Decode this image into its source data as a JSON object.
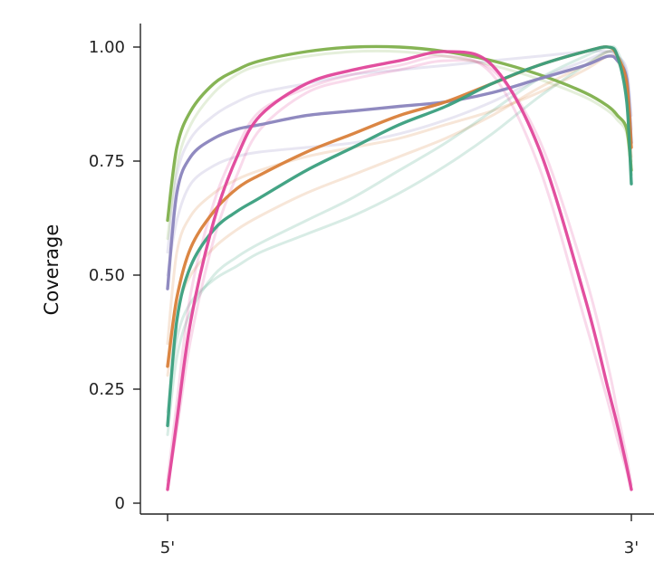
{
  "chart_data": {
    "type": "line",
    "title": "",
    "xlabel": "",
    "ylabel": "Coverage",
    "ylim": [
      0,
      1
    ],
    "xlim": [
      0,
      1
    ],
    "grid": false,
    "y_ticks": [
      {
        "value": 0,
        "label": "0"
      },
      {
        "value": 0.25,
        "label": "0.25"
      },
      {
        "value": 0.5,
        "label": "0.50"
      },
      {
        "value": 0.75,
        "label": "0.75"
      },
      {
        "value": 1.0,
        "label": "1.00"
      }
    ],
    "x_ticks": [
      {
        "value": 0,
        "label": "5'"
      },
      {
        "value": 1,
        "label": "3'"
      }
    ],
    "x": [
      0,
      0.02,
      0.05,
      0.1,
      0.15,
      0.2,
      0.3,
      0.4,
      0.5,
      0.6,
      0.7,
      0.8,
      0.9,
      0.95,
      0.97,
      0.99,
      1.0
    ],
    "series": [
      {
        "color": "#7fb04c",
        "highlight": true,
        "values": [
          0.62,
          0.78,
          0.86,
          0.92,
          0.95,
          0.97,
          0.99,
          1.0,
          1.0,
          0.99,
          0.97,
          0.94,
          0.9,
          0.87,
          0.85,
          0.82,
          0.73
        ]
      },
      {
        "color": "#8a84bd",
        "highlight": true,
        "values": [
          0.47,
          0.68,
          0.76,
          0.8,
          0.82,
          0.83,
          0.85,
          0.86,
          0.87,
          0.88,
          0.9,
          0.93,
          0.96,
          0.98,
          0.97,
          0.93,
          0.79
        ]
      },
      {
        "color": "#d9803a",
        "highlight": true,
        "values": [
          0.3,
          0.45,
          0.56,
          0.64,
          0.69,
          0.72,
          0.77,
          0.81,
          0.85,
          0.88,
          0.92,
          0.96,
          0.99,
          1.0,
          0.98,
          0.92,
          0.78
        ]
      },
      {
        "color": "#3a9f7e",
        "highlight": true,
        "values": [
          0.17,
          0.4,
          0.52,
          0.6,
          0.64,
          0.67,
          0.73,
          0.78,
          0.83,
          0.87,
          0.92,
          0.96,
          0.99,
          1.0,
          0.98,
          0.88,
          0.7
        ]
      },
      {
        "color": "#e0469a",
        "highlight": true,
        "values": [
          0.03,
          0.18,
          0.4,
          0.62,
          0.76,
          0.85,
          0.92,
          0.95,
          0.97,
          0.99,
          0.96,
          0.78,
          0.45,
          0.25,
          0.17,
          0.08,
          0.03
        ]
      },
      {
        "color": "#8a84bd",
        "highlight": false,
        "values": [
          0.55,
          0.72,
          0.8,
          0.85,
          0.88,
          0.9,
          0.92,
          0.94,
          0.95,
          0.96,
          0.97,
          0.98,
          0.99,
          0.99,
          0.98,
          0.95,
          0.85
        ]
      },
      {
        "color": "#8a84bd",
        "highlight": false,
        "values": [
          0.5,
          0.62,
          0.7,
          0.74,
          0.76,
          0.77,
          0.78,
          0.79,
          0.81,
          0.84,
          0.88,
          0.93,
          0.97,
          0.99,
          0.98,
          0.94,
          0.82
        ]
      },
      {
        "color": "#7fb04c",
        "highlight": false,
        "values": [
          0.58,
          0.74,
          0.83,
          0.9,
          0.94,
          0.96,
          0.98,
          0.99,
          0.99,
          0.98,
          0.96,
          0.93,
          0.89,
          0.86,
          0.84,
          0.81,
          0.72
        ]
      },
      {
        "color": "#d9803a",
        "highlight": false,
        "values": [
          0.35,
          0.55,
          0.63,
          0.68,
          0.71,
          0.73,
          0.76,
          0.78,
          0.8,
          0.83,
          0.86,
          0.9,
          0.95,
          0.98,
          0.97,
          0.9,
          0.75
        ]
      },
      {
        "color": "#d9803a",
        "highlight": false,
        "values": [
          0.28,
          0.42,
          0.5,
          0.56,
          0.6,
          0.63,
          0.68,
          0.72,
          0.76,
          0.8,
          0.85,
          0.91,
          0.96,
          0.99,
          0.98,
          0.91,
          0.76
        ]
      },
      {
        "color": "#3a9f7e",
        "highlight": false,
        "values": [
          0.15,
          0.32,
          0.42,
          0.5,
          0.54,
          0.57,
          0.62,
          0.67,
          0.73,
          0.79,
          0.86,
          0.93,
          0.98,
          1.0,
          0.99,
          0.92,
          0.74
        ]
      },
      {
        "color": "#3a9f7e",
        "highlight": false,
        "values": [
          0.2,
          0.36,
          0.44,
          0.49,
          0.52,
          0.55,
          0.59,
          0.63,
          0.68,
          0.74,
          0.81,
          0.89,
          0.96,
          0.99,
          0.98,
          0.9,
          0.72
        ]
      },
      {
        "color": "#e0469a",
        "highlight": false,
        "values": [
          0.04,
          0.16,
          0.36,
          0.58,
          0.72,
          0.82,
          0.9,
          0.93,
          0.95,
          0.97,
          0.95,
          0.8,
          0.5,
          0.3,
          0.2,
          0.1,
          0.04
        ]
      },
      {
        "color": "#e0469a",
        "highlight": false,
        "values": [
          0.05,
          0.22,
          0.46,
          0.66,
          0.78,
          0.86,
          0.91,
          0.94,
          0.96,
          0.98,
          0.94,
          0.74,
          0.4,
          0.22,
          0.14,
          0.07,
          0.03
        ]
      }
    ]
  }
}
